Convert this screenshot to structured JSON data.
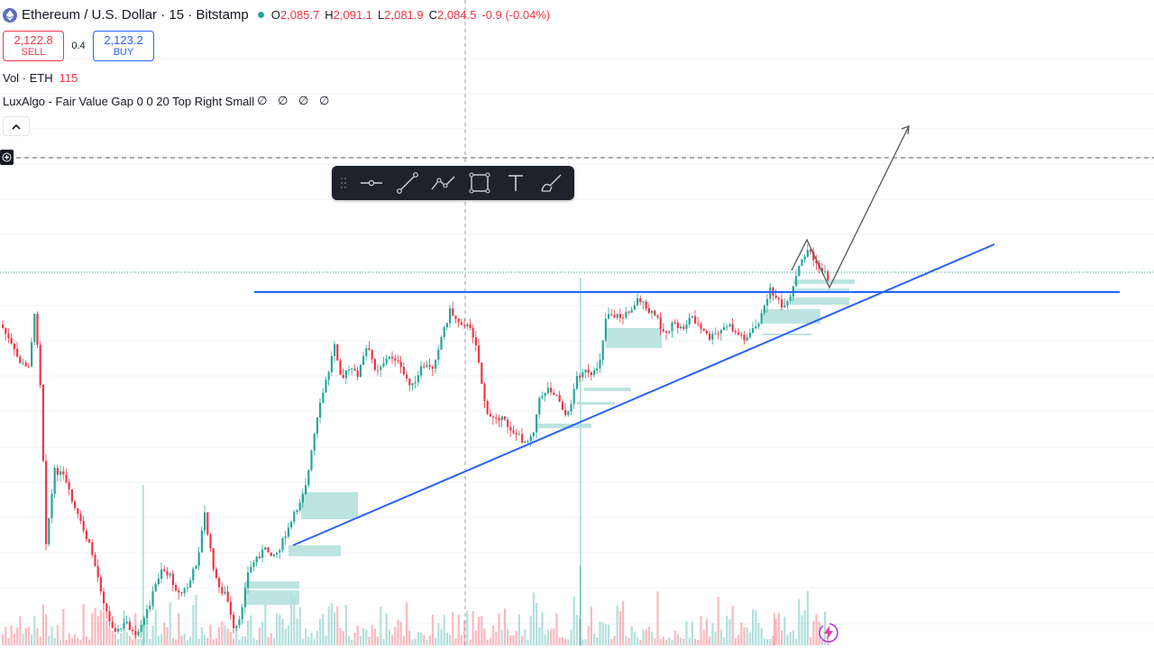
{
  "symbol": {
    "title": "Ethereum / U.S. Dollar · 15 · Bitstamp",
    "icon": "ethereum-icon",
    "ohlc": {
      "o_label": "O",
      "o": "2,085.7",
      "h_label": "H",
      "h": "2,091.1",
      "l_label": "L",
      "l": "2,081.9",
      "c_label": "C",
      "c": "2,084.5",
      "change": "-0.9 (-0.04%)"
    }
  },
  "trade": {
    "sell_price": "2,122.8",
    "sell_label": "SELL",
    "spread": "0.4",
    "buy_price": "2,123.2",
    "buy_label": "BUY"
  },
  "indicators": {
    "volume_label": "Vol · ETH",
    "volume_value": "115",
    "luxalgo_label": "LuxAlgo - Fair Value Gap 0 0 20 Top Right Small",
    "luxalgo_values": "∅ ∅ ∅ ∅"
  },
  "toolbar": {
    "tools": [
      "horizontal-line-icon",
      "trend-line-icon",
      "path-icon",
      "rectangle-icon",
      "text-icon",
      "brush-icon"
    ]
  },
  "colors": {
    "up": "#26a69a",
    "down": "#f23645",
    "trend_line": "#2962ff",
    "fvg_fill": "#b2dfdb",
    "projection": "#555555"
  }
}
